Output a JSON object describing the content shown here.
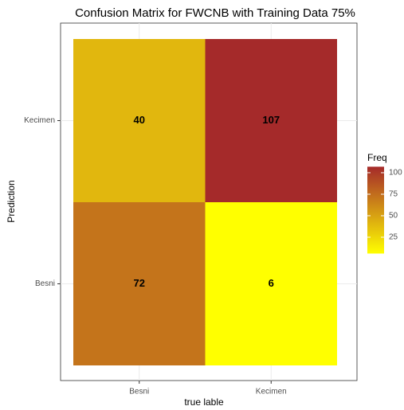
{
  "chart_data": {
    "type": "heatmap",
    "title": "Confusion Matrix for FWCNB with Training Data 75%",
    "x_label": "true lable",
    "y_label": "Prediction",
    "x_categories": [
      "Besni",
      "Kecimen"
    ],
    "y_categories": [
      "Besni",
      "Kecimen"
    ],
    "values": [
      [
        72,
        6
      ],
      [
        40,
        107
      ]
    ],
    "legend_title": "Freq",
    "clim": [
      6,
      107
    ],
    "cticks": [
      25,
      50,
      75,
      100
    ],
    "colors": [
      "#ffff00",
      "#a52a2a"
    ],
    "grid": true
  }
}
